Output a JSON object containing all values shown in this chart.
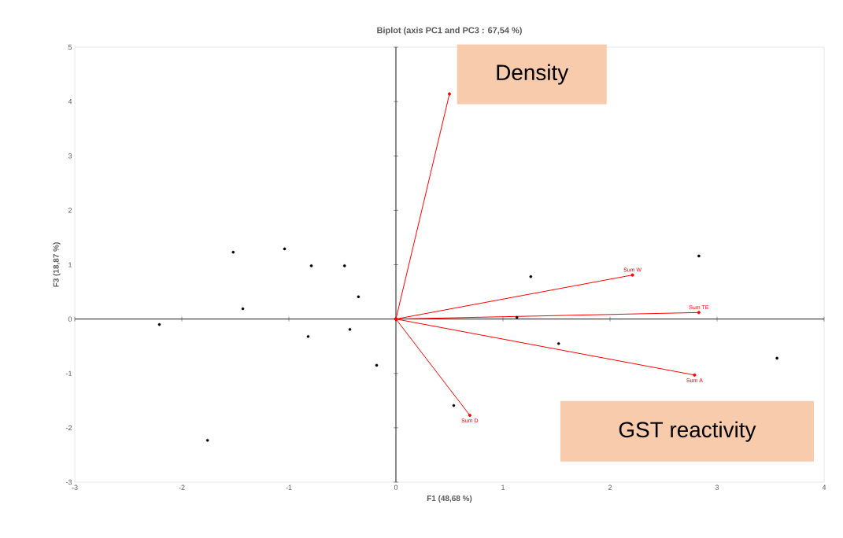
{
  "chart_data": {
    "type": "scatter",
    "title": "Biplot (axis PC1 and PC3 : 67,54 %)",
    "xlabel": "F1 (48,68 %)",
    "ylabel": "F3 (18,87 %)",
    "xlim": [
      -3,
      4
    ],
    "ylim": [
      -3,
      5
    ],
    "xticks": [
      -3,
      -2,
      -1,
      0,
      1,
      2,
      3,
      4
    ],
    "yticks": [
      -3,
      -2,
      -1,
      0,
      1,
      2,
      3,
      4,
      5
    ],
    "marker": "circle",
    "annotations": [
      "Density",
      "GST reactivity"
    ],
    "series": [
      {
        "color": "#000000",
        "x": [
          -2.21,
          -1.76,
          -1.52,
          -1.43,
          -1.04,
          -0.79,
          -0.82,
          -0.48,
          -0.43,
          -0.35,
          -0.18,
          0.54,
          1.13,
          1.26,
          1.52,
          2.83,
          3.56
        ],
        "values": [
          -0.1,
          -2.23,
          1.23,
          0.19,
          1.29,
          0.98,
          -0.32,
          0.98,
          -0.19,
          0.41,
          -0.85,
          -1.59,
          0.03,
          0.78,
          -0.45,
          1.16,
          -0.72
        ]
      },
      {
        "type": "line",
        "color": "#ff0000",
        "x": [
          0,
          0.5
        ],
        "values": [
          0,
          4.14
        ]
      },
      {
        "type": "line",
        "name": "Sum W",
        "color": "#ff0000",
        "x": [
          0,
          2.21
        ],
        "values": [
          0,
          0.81
        ]
      },
      {
        "type": "line",
        "name": "Sum TE",
        "color": "#ff0000",
        "x": [
          0,
          2.83
        ],
        "values": [
          0,
          0.12
        ]
      },
      {
        "type": "line",
        "name": "Sum A",
        "color": "#ff0000",
        "x": [
          0,
          2.79
        ],
        "values": [
          0,
          -1.03
        ]
      },
      {
        "type": "line",
        "name": "Sum D",
        "color": "#ff0000",
        "x": [
          0,
          0.69
        ],
        "values": [
          0,
          -1.77
        ]
      }
    ]
  }
}
